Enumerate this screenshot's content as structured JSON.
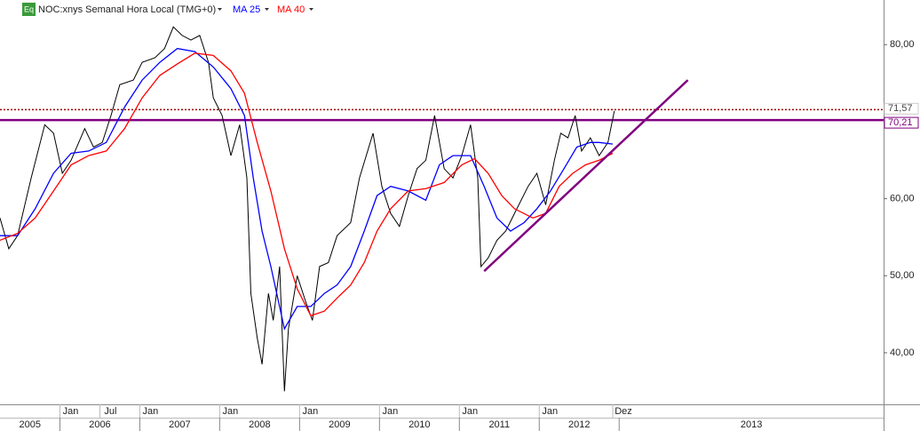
{
  "chart_data": {
    "type": "line",
    "badge": "Eq",
    "xlim": [
      2005.25,
      2016.31
    ],
    "ylim": [
      33.3,
      85.8
    ],
    "yticks": [
      {
        "value": 40,
        "label": "40,00"
      },
      {
        "value": 50,
        "label": "50,00"
      },
      {
        "value": 60,
        "label": "60,00"
      },
      {
        "value": 80,
        "label": "80,00"
      }
    ],
    "xticks": [
      {
        "value": 2006,
        "label": "Jan"
      },
      {
        "value": 2006.5,
        "label": "Jul"
      },
      {
        "value": 2007,
        "label": "Jan"
      },
      {
        "value": 2008,
        "label": "Jan"
      },
      {
        "value": 2009,
        "label": "Jan"
      },
      {
        "value": 2010,
        "label": "Jan"
      },
      {
        "value": 2011,
        "label": "Jan"
      },
      {
        "value": 2012,
        "label": "Jan"
      },
      {
        "value": 2012.92,
        "label": "Dez"
      }
    ],
    "year_ticks": [
      2005,
      2006,
      2007,
      2008,
      2009,
      2010,
      2011,
      2012,
      2013
    ],
    "series": [
      {
        "name": "NOC:xnys Semanal Hora Local (TMG+0)",
        "color": "#000000",
        "x": [
          2005.25,
          2005.36,
          2005.47,
          2005.64,
          2005.81,
          2005.92,
          2006.03,
          2006.14,
          2006.31,
          2006.42,
          2006.53,
          2006.64,
          2006.75,
          2006.92,
          2007.03,
          2007.19,
          2007.31,
          2007.42,
          2007.53,
          2007.64,
          2007.75,
          2007.86,
          2007.92,
          2008.03,
          2008.14,
          2008.25,
          2008.34,
          2008.39,
          2008.47,
          2008.53,
          2008.61,
          2008.67,
          2008.75,
          2008.81,
          2008.86,
          2008.97,
          2009.08,
          2009.16,
          2009.25,
          2009.36,
          2009.47,
          2009.64,
          2009.75,
          2009.92,
          2010.03,
          2010.14,
          2010.25,
          2010.36,
          2010.47,
          2010.58,
          2010.69,
          2010.81,
          2010.92,
          2011.03,
          2011.14,
          2011.23,
          2011.27,
          2011.36,
          2011.47,
          2011.58,
          2011.69,
          2011.86,
          2011.97,
          2012.08,
          2012.19,
          2012.27,
          2012.36,
          2012.45,
          2012.53,
          2012.64,
          2012.75,
          2012.86,
          2012.94
        ],
        "values": [
          57.5,
          53.5,
          55.2,
          62.7,
          69.6,
          68.5,
          63.3,
          65.0,
          69.1,
          66.7,
          67.3,
          70.8,
          74.8,
          75.4,
          77.7,
          78.3,
          79.5,
          82.3,
          81.2,
          80.6,
          81.2,
          77.7,
          73.1,
          70.8,
          65.6,
          69.6,
          62.7,
          47.7,
          41.9,
          38.5,
          47.7,
          44.2,
          51.2,
          35.0,
          43.1,
          50.0,
          46.5,
          44.2,
          51.2,
          51.7,
          55.2,
          56.9,
          62.7,
          68.5,
          61.6,
          58.1,
          56.4,
          60.4,
          63.9,
          65.0,
          70.8,
          63.9,
          62.7,
          65.6,
          69.6,
          62.7,
          51.2,
          52.3,
          54.6,
          55.8,
          58.1,
          61.6,
          63.3,
          59.2,
          65.0,
          68.5,
          67.9,
          70.8,
          66.2,
          67.9,
          65.6,
          67.3,
          71.4
        ]
      },
      {
        "name": "MA 25",
        "color": "#0000ff",
        "x": [
          2005.25,
          2005.47,
          2005.69,
          2005.92,
          2006.14,
          2006.36,
          2006.58,
          2006.81,
          2007.03,
          2007.25,
          2007.47,
          2007.69,
          2007.92,
          2008.14,
          2008.31,
          2008.42,
          2008.53,
          2008.64,
          2008.81,
          2008.97,
          2009.14,
          2009.31,
          2009.47,
          2009.64,
          2009.81,
          2009.97,
          2010.14,
          2010.36,
          2010.58,
          2010.75,
          2010.92,
          2011.14,
          2011.31,
          2011.47,
          2011.64,
          2011.81,
          2011.97,
          2012.14,
          2012.31,
          2012.47,
          2012.64,
          2012.75,
          2012.92
        ],
        "values": [
          55.2,
          55.2,
          58.7,
          63.3,
          65.9,
          66.2,
          67.3,
          71.9,
          75.4,
          77.7,
          79.5,
          79.1,
          77.1,
          74.3,
          70.8,
          62.7,
          55.8,
          51.2,
          43.1,
          46.0,
          46.0,
          47.7,
          48.8,
          51.2,
          55.8,
          60.4,
          61.6,
          61.0,
          59.8,
          64.4,
          65.6,
          65.6,
          61.6,
          57.5,
          55.8,
          56.9,
          58.7,
          61.0,
          63.9,
          66.7,
          67.3,
          67.3,
          67.1
        ]
      },
      {
        "name": "MA 40",
        "color": "#ff0000",
        "x": [
          2005.25,
          2005.47,
          2005.69,
          2005.92,
          2006.14,
          2006.36,
          2006.58,
          2006.81,
          2007.03,
          2007.25,
          2007.47,
          2007.69,
          2007.92,
          2008.14,
          2008.31,
          2008.47,
          2008.64,
          2008.81,
          2008.97,
          2009.14,
          2009.31,
          2009.47,
          2009.64,
          2009.81,
          2009.97,
          2010.14,
          2010.36,
          2010.58,
          2010.81,
          2011.03,
          2011.19,
          2011.36,
          2011.53,
          2011.69,
          2011.92,
          2012.08,
          2012.25,
          2012.42,
          2012.58,
          2012.75,
          2012.92
        ],
        "values": [
          54.6,
          55.5,
          57.5,
          61.0,
          64.4,
          65.6,
          66.2,
          69.1,
          73.1,
          76.0,
          77.5,
          78.9,
          78.6,
          76.6,
          73.7,
          67.3,
          61.0,
          53.5,
          48.3,
          44.8,
          45.4,
          47.1,
          48.8,
          51.7,
          55.8,
          58.7,
          61.0,
          61.3,
          62.1,
          64.4,
          65.2,
          63.3,
          60.4,
          58.7,
          57.5,
          58.1,
          61.6,
          63.3,
          64.4,
          65.0,
          65.9
        ]
      }
    ],
    "levels": [
      {
        "value": 71.57,
        "label": "71,57",
        "color": "#a00000",
        "style": "dotted"
      },
      {
        "value": 70.21,
        "label": "70,21",
        "color": "#800080",
        "style": "solid"
      }
    ],
    "trendline": {
      "x": [
        2011.31,
        2013.86
      ],
      "values": [
        50.6,
        75.4
      ],
      "color": "#800080"
    }
  }
}
